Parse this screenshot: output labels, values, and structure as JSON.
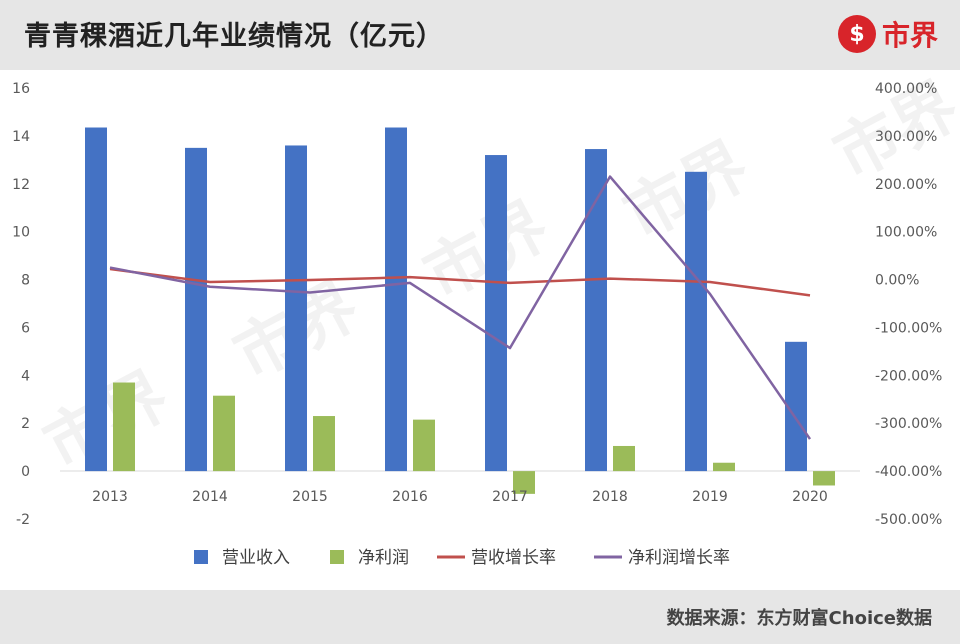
{
  "header": {
    "title": "青青稞酒近几年业绩情况（亿元）",
    "logo_text": "市界",
    "logo_mark": "$"
  },
  "footer": {
    "source": "数据来源：东方财富Choice数据"
  },
  "watermark": "市界",
  "chart_data": {
    "type": "bar",
    "categories": [
      "2013",
      "2014",
      "2015",
      "2016",
      "2017",
      "2018",
      "2019",
      "2020"
    ],
    "series": [
      {
        "name": "营业收入",
        "kind": "bar",
        "axis": "left",
        "color": "#4472c4",
        "values": [
          14.35,
          13.5,
          13.6,
          14.35,
          13.2,
          13.45,
          12.5,
          5.4
        ]
      },
      {
        "name": "净利润",
        "kind": "bar",
        "axis": "left",
        "color": "#9bbb59",
        "values": [
          3.7,
          3.15,
          2.3,
          2.15,
          -0.95,
          1.05,
          0.35,
          -0.6
        ]
      },
      {
        "name": "营收增长率",
        "kind": "line",
        "axis": "right",
        "color": "#c0504d",
        "values": [
          22,
          -5,
          -1,
          5,
          -7,
          2,
          -5,
          -33
        ]
      },
      {
        "name": "净利润增长率",
        "kind": "line",
        "axis": "right",
        "color": "#8064a2",
        "values": [
          25,
          -15,
          -27,
          -7,
          -143,
          215,
          -30,
          -333
        ]
      }
    ],
    "y_left": {
      "min": -2,
      "max": 16,
      "step": 2,
      "ticks": [
        "-2",
        "0",
        "2",
        "4",
        "6",
        "8",
        "10",
        "12",
        "14",
        "16"
      ]
    },
    "y_right": {
      "min": -500,
      "max": 400,
      "step": 100,
      "ticks": [
        "-500.00%",
        "-400.00%",
        "-300.00%",
        "-200.00%",
        "-100.00%",
        "0.00%",
        "100.00%",
        "200.00%",
        "300.00%",
        "400.00%"
      ]
    },
    "grid": false,
    "legend_position": "bottom"
  }
}
